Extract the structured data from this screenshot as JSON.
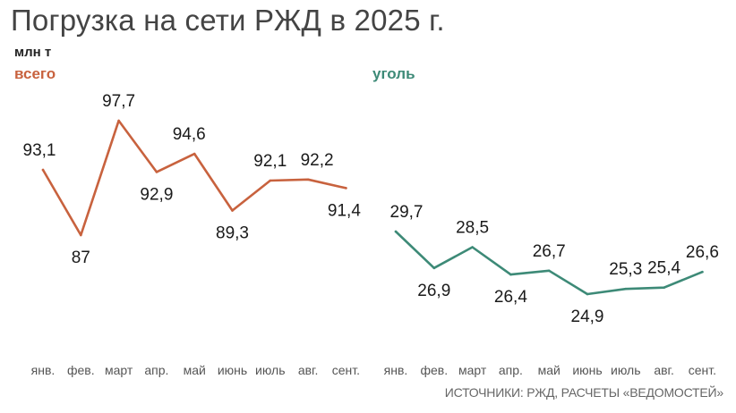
{
  "title": "Погрузка на сети РЖД в 2025 г.",
  "unit": "млн т",
  "source": "ИСТОЧНИКИ: РЖД, РАСЧЕТЫ «ВЕДОМОСТЕЙ»",
  "colors": {
    "total": "#c8623e",
    "coal": "#3d8a77"
  },
  "chart_data": [
    {
      "type": "line",
      "series": [
        {
          "name": "всего",
          "values": [
            93.1,
            87,
            97.7,
            92.9,
            94.6,
            89.3,
            92.1,
            92.2,
            91.4
          ]
        }
      ],
      "value_labels": [
        "93,1",
        "87",
        "97,7",
        "92,9",
        "94,6",
        "89,3",
        "92,1",
        "92,2",
        "91,4"
      ],
      "categories": [
        "янв.",
        "фев.",
        "март",
        "апр.",
        "май",
        "июнь",
        "июль",
        "авг.",
        "сент."
      ]
    },
    {
      "type": "line",
      "series": [
        {
          "name": "уголь",
          "values": [
            29.7,
            26.9,
            28.5,
            26.4,
            26.7,
            24.9,
            25.3,
            25.4,
            26.6
          ]
        }
      ],
      "value_labels": [
        "29,7",
        "26,9",
        "28,5",
        "26,4",
        "26,7",
        "24,9",
        "25,3",
        "25,4",
        "26,6"
      ],
      "categories": [
        "янв.",
        "фев.",
        "март",
        "апр.",
        "май",
        "июнь",
        "июль",
        "авг.",
        "сент."
      ]
    }
  ]
}
